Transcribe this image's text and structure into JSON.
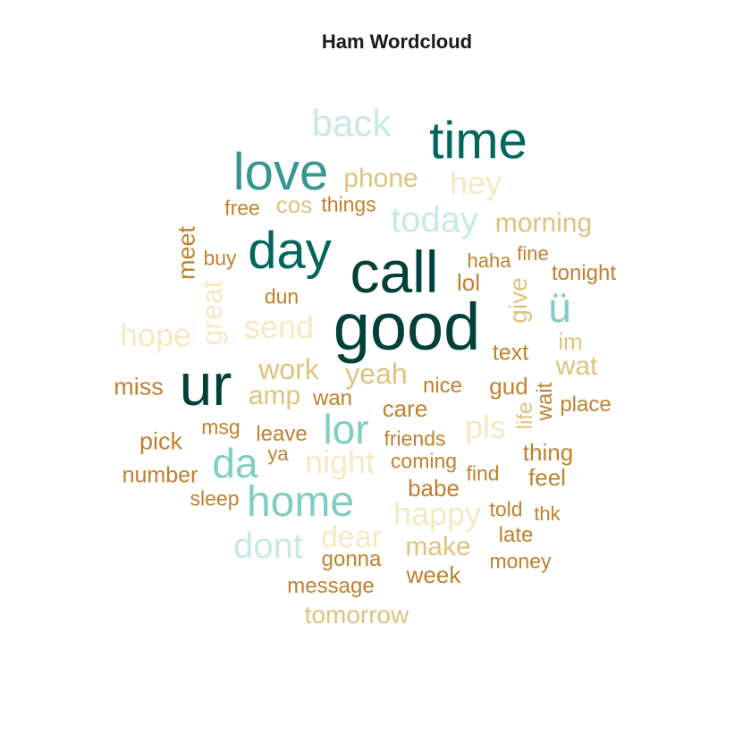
{
  "title": "Ham Wordcloud",
  "palette": {
    "darkest": "#01413a",
    "dark_teal": "#01665e",
    "teal": "#35978f",
    "light_teal": "#80cdc1",
    "pale_teal": "#c7eae5",
    "cream": "#f6e8c3",
    "sand": "#dfc27d",
    "brown": "#bf812d"
  },
  "chart_data": {
    "type": "wordcloud",
    "title": "Ham Wordcloud",
    "words": [
      {
        "text": "good",
        "color": "#01413a",
        "vertical": false
      },
      {
        "text": "call",
        "color": "#01413a",
        "vertical": false
      },
      {
        "text": "ur",
        "color": "#01413a",
        "vertical": false
      },
      {
        "text": "time",
        "color": "#01665e",
        "vertical": false
      },
      {
        "text": "day",
        "color": "#01665e",
        "vertical": false
      },
      {
        "text": "love",
        "color": "#35978f",
        "vertical": false
      },
      {
        "text": "home",
        "color": "#80cdc1",
        "vertical": false
      },
      {
        "text": "lor",
        "color": "#80cdc1",
        "vertical": false
      },
      {
        "text": "da",
        "color": "#80cdc1",
        "vertical": false
      },
      {
        "text": "ü",
        "color": "#80cdc1",
        "vertical": false
      },
      {
        "text": "back",
        "color": "#c7eae5",
        "vertical": false
      },
      {
        "text": "today",
        "color": "#c7eae5",
        "vertical": false
      },
      {
        "text": "dont",
        "color": "#c7eae5",
        "vertical": false
      },
      {
        "text": "hope",
        "color": "#f6e8c3",
        "vertical": false
      },
      {
        "text": "send",
        "color": "#f6e8c3",
        "vertical": false
      },
      {
        "text": "hey",
        "color": "#f6e8c3",
        "vertical": false
      },
      {
        "text": "night",
        "color": "#f6e8c3",
        "vertical": false
      },
      {
        "text": "pls",
        "color": "#f6e8c3",
        "vertical": false
      },
      {
        "text": "happy",
        "color": "#f6e8c3",
        "vertical": false
      },
      {
        "text": "dear",
        "color": "#f6e8c3",
        "vertical": false
      },
      {
        "text": "great",
        "color": "#f6e8c3",
        "vertical": true
      },
      {
        "text": "phone",
        "color": "#dfc27d",
        "vertical": false
      },
      {
        "text": "cos",
        "color": "#dfc27d",
        "vertical": false
      },
      {
        "text": "morning",
        "color": "#dfc27d",
        "vertical": false
      },
      {
        "text": "work",
        "color": "#dfc27d",
        "vertical": false
      },
      {
        "text": "yeah",
        "color": "#dfc27d",
        "vertical": false
      },
      {
        "text": "amp",
        "color": "#dfc27d",
        "vertical": false
      },
      {
        "text": "wat",
        "color": "#dfc27d",
        "vertical": false
      },
      {
        "text": "im",
        "color": "#dfc27d",
        "vertical": false
      },
      {
        "text": "make",
        "color": "#dfc27d",
        "vertical": false
      },
      {
        "text": "tomorrow",
        "color": "#dfc27d",
        "vertical": false
      },
      {
        "text": "give",
        "color": "#dfc27d",
        "vertical": true
      },
      {
        "text": "life",
        "color": "#dfc27d",
        "vertical": true
      },
      {
        "text": "free",
        "color": "#bf812d",
        "vertical": false
      },
      {
        "text": "things",
        "color": "#bf812d",
        "vertical": false
      },
      {
        "text": "buy",
        "color": "#bf812d",
        "vertical": false
      },
      {
        "text": "haha",
        "color": "#bf812d",
        "vertical": false
      },
      {
        "text": "fine",
        "color": "#bf812d",
        "vertical": false
      },
      {
        "text": "tonight",
        "color": "#bf812d",
        "vertical": false
      },
      {
        "text": "lol",
        "color": "#bf812d",
        "vertical": false
      },
      {
        "text": "dun",
        "color": "#bf812d",
        "vertical": false
      },
      {
        "text": "text",
        "color": "#bf812d",
        "vertical": false
      },
      {
        "text": "miss",
        "color": "#bf812d",
        "vertical": false
      },
      {
        "text": "wan",
        "color": "#bf812d",
        "vertical": false
      },
      {
        "text": "nice",
        "color": "#bf812d",
        "vertical": false
      },
      {
        "text": "gud",
        "color": "#bf812d",
        "vertical": false
      },
      {
        "text": "place",
        "color": "#bf812d",
        "vertical": false
      },
      {
        "text": "care",
        "color": "#bf812d",
        "vertical": false
      },
      {
        "text": "msg",
        "color": "#bf812d",
        "vertical": false
      },
      {
        "text": "leave",
        "color": "#bf812d",
        "vertical": false
      },
      {
        "text": "friends",
        "color": "#bf812d",
        "vertical": false
      },
      {
        "text": "pick",
        "color": "#bf812d",
        "vertical": false
      },
      {
        "text": "ya",
        "color": "#bf812d",
        "vertical": false
      },
      {
        "text": "thing",
        "color": "#bf812d",
        "vertical": false
      },
      {
        "text": "coming",
        "color": "#bf812d",
        "vertical": false
      },
      {
        "text": "number",
        "color": "#bf812d",
        "vertical": false
      },
      {
        "text": "find",
        "color": "#bf812d",
        "vertical": false
      },
      {
        "text": "feel",
        "color": "#bf812d",
        "vertical": false
      },
      {
        "text": "sleep",
        "color": "#bf812d",
        "vertical": false
      },
      {
        "text": "babe",
        "color": "#bf812d",
        "vertical": false
      },
      {
        "text": "told",
        "color": "#bf812d",
        "vertical": false
      },
      {
        "text": "thk",
        "color": "#bf812d",
        "vertical": false
      },
      {
        "text": "late",
        "color": "#bf812d",
        "vertical": false
      },
      {
        "text": "gonna",
        "color": "#bf812d",
        "vertical": false
      },
      {
        "text": "money",
        "color": "#bf812d",
        "vertical": false
      },
      {
        "text": "week",
        "color": "#bf812d",
        "vertical": false
      },
      {
        "text": "message",
        "color": "#bf812d",
        "vertical": false
      },
      {
        "text": "meet",
        "color": "#bf812d",
        "vertical": true
      },
      {
        "text": "wait",
        "color": "#bf812d",
        "vertical": true
      }
    ]
  }
}
